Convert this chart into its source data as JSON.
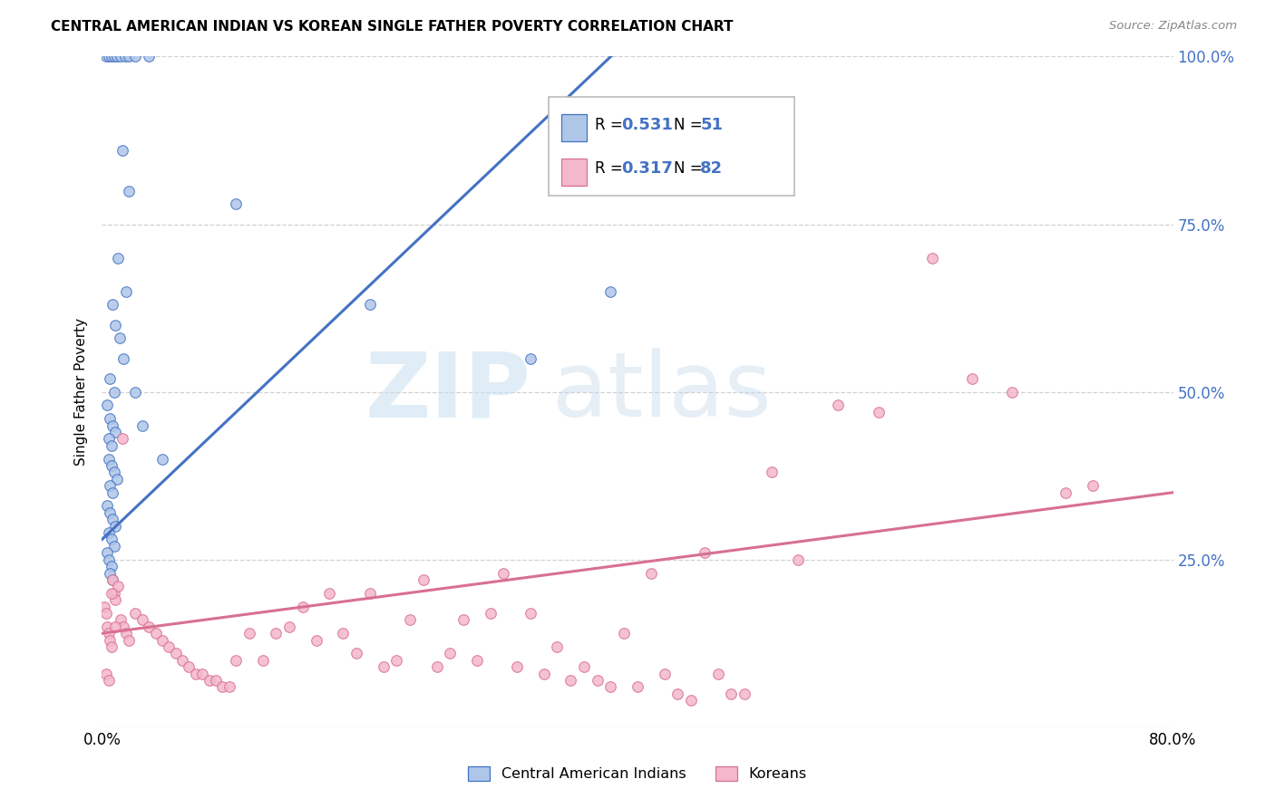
{
  "title": "CENTRAL AMERICAN INDIAN VS KOREAN SINGLE FATHER POVERTY CORRELATION CHART",
  "source": "Source: ZipAtlas.com",
  "ylabel": "Single Father Poverty",
  "r_blue": 0.531,
  "n_blue": 51,
  "r_pink": 0.317,
  "n_pink": 82,
  "blue_fill": "#aec6e8",
  "blue_edge": "#4472c4",
  "pink_fill": "#f4b8cc",
  "pink_edge": "#d87090",
  "line_blue": "#4472c4",
  "line_pink": "#d87090",
  "legend_blue_label": "Central American Indians",
  "legend_pink_label": "Koreans",
  "blue_scatter_x": [
    0.3,
    0.5,
    0.7,
    0.9,
    1.1,
    1.4,
    1.7,
    2.0,
    2.5,
    3.5,
    1.5,
    2.0,
    1.2,
    1.8,
    0.8,
    1.0,
    1.3,
    1.6,
    0.6,
    0.9,
    0.4,
    0.6,
    0.8,
    1.0,
    0.5,
    0.7,
    0.5,
    0.7,
    0.9,
    1.1,
    0.6,
    0.8,
    0.4,
    0.6,
    0.8,
    1.0,
    0.5,
    0.7,
    0.9,
    0.4,
    0.5,
    0.7,
    0.6,
    0.8,
    2.5,
    3.0,
    4.5,
    10.0,
    20.0,
    32.0,
    38.0
  ],
  "blue_scatter_y": [
    100,
    100,
    100,
    100,
    100,
    100,
    100,
    100,
    100,
    100,
    86,
    80,
    70,
    65,
    63,
    60,
    58,
    55,
    52,
    50,
    48,
    46,
    45,
    44,
    43,
    42,
    40,
    39,
    38,
    37,
    36,
    35,
    33,
    32,
    31,
    30,
    29,
    28,
    27,
    26,
    25,
    24,
    23,
    22,
    50,
    45,
    40,
    78,
    63,
    55,
    65
  ],
  "pink_scatter_x": [
    0.2,
    0.3,
    0.4,
    0.5,
    0.6,
    0.7,
    0.8,
    0.9,
    1.0,
    1.2,
    1.4,
    1.6,
    1.8,
    2.0,
    2.5,
    3.0,
    3.5,
    4.0,
    4.5,
    5.0,
    5.5,
    6.0,
    6.5,
    7.0,
    7.5,
    8.0,
    8.5,
    9.0,
    9.5,
    10.0,
    11.0,
    12.0,
    13.0,
    14.0,
    15.0,
    16.0,
    17.0,
    18.0,
    19.0,
    20.0,
    21.0,
    22.0,
    23.0,
    24.0,
    25.0,
    26.0,
    27.0,
    28.0,
    29.0,
    30.0,
    31.0,
    32.0,
    33.0,
    34.0,
    35.0,
    36.0,
    37.0,
    38.0,
    39.0,
    40.0,
    41.0,
    42.0,
    43.0,
    44.0,
    45.0,
    46.0,
    47.0,
    48.0,
    50.0,
    52.0,
    55.0,
    58.0,
    62.0,
    65.0,
    68.0,
    72.0,
    74.0,
    0.3,
    0.5,
    0.7,
    1.0,
    1.5
  ],
  "pink_scatter_y": [
    18,
    17,
    15,
    14,
    13,
    12,
    22,
    20,
    19,
    21,
    16,
    15,
    14,
    13,
    17,
    16,
    15,
    14,
    13,
    12,
    11,
    10,
    9,
    8,
    8,
    7,
    7,
    6,
    6,
    10,
    14,
    10,
    14,
    15,
    18,
    13,
    20,
    14,
    11,
    20,
    9,
    10,
    16,
    22,
    9,
    11,
    16,
    10,
    17,
    23,
    9,
    17,
    8,
    12,
    7,
    9,
    7,
    6,
    14,
    6,
    23,
    8,
    5,
    4,
    26,
    8,
    5,
    5,
    38,
    25,
    48,
    47,
    70,
    52,
    50,
    35,
    36,
    8,
    7,
    20,
    15,
    43
  ],
  "xmin": 0.0,
  "xmax": 80.0,
  "ymin": 0.0,
  "ymax": 100.0,
  "ytick_vals": [
    0,
    25,
    50,
    75,
    100
  ],
  "ytick_labels": [
    "",
    "25.0%",
    "50.0%",
    "75.0%",
    "100.0%"
  ],
  "xtick_vals": [
    0,
    80
  ],
  "xtick_labels": [
    "0.0%",
    "80.0%"
  ],
  "grid_color": "#cccccc",
  "bg_color": "#ffffff",
  "right_tick_color": "#4472c4"
}
